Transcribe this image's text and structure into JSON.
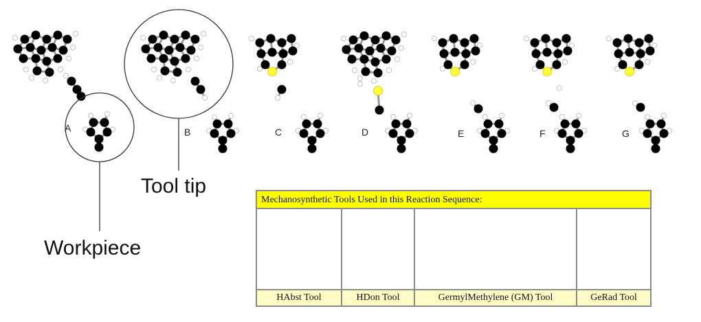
{
  "reaction_steps": [
    {
      "label": "A"
    },
    {
      "label": "B"
    },
    {
      "label": "C"
    },
    {
      "label": "D"
    },
    {
      "label": "E"
    },
    {
      "label": "F"
    },
    {
      "label": "G"
    }
  ],
  "callouts": {
    "workpiece": "Workpiece",
    "tool_tip": "Tool tip"
  },
  "tools_table": {
    "header": "Mechanosynthetic Tools Used in this Reaction Sequence:",
    "tools": [
      {
        "name": "HAbst Tool"
      },
      {
        "name": "HDon Tool"
      },
      {
        "name": "GermylMethylene (GM) Tool"
      },
      {
        "name": "GeRad Tool"
      }
    ]
  },
  "colors": {
    "carbon": "#000000",
    "hydrogen": "#ffffff",
    "germanium": "#ffff33",
    "bond": "#9a9a9a",
    "table_header": "#ffff00",
    "table_caption": "#fefcc4"
  }
}
